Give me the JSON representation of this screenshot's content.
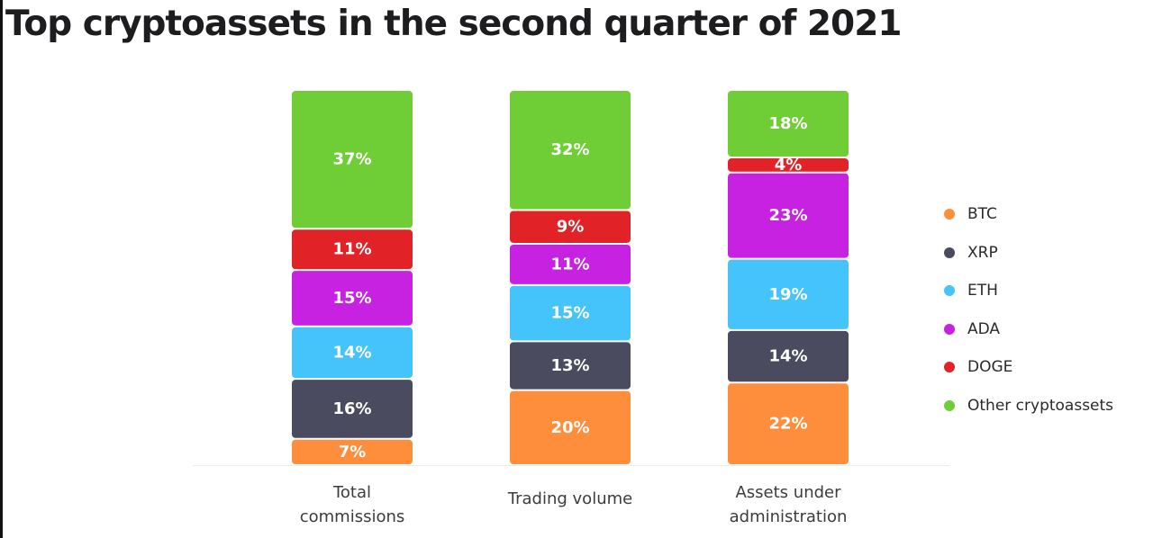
{
  "title": "Top cryptoassets in the second quarter of 2021",
  "colors": {
    "BTC": "#fe8e3b",
    "XRP": "#4a4b5e",
    "ETH": "#45c4fb",
    "ADA": "#c722e1",
    "DOGE": "#e12226",
    "Other cryptoassets": "#6fce35"
  },
  "chart_data": {
    "type": "bar",
    "stacked": true,
    "normalized": true,
    "title": "Top cryptoassets in the second quarter of 2021",
    "xlabel": "",
    "ylabel": "",
    "ylim": [
      0,
      100
    ],
    "grid": false,
    "legend": "right",
    "categories": [
      "Total commissions",
      "Trading volume",
      "Assets under administration"
    ],
    "category_lines": [
      [
        "Total",
        "commissions"
      ],
      [
        "Trading volume"
      ],
      [
        "Assets under",
        "administration"
      ]
    ],
    "series": [
      {
        "name": "BTC",
        "values": [
          7,
          20,
          22
        ],
        "labels": [
          "7%",
          "20%",
          "22%"
        ]
      },
      {
        "name": "XRP",
        "values": [
          16,
          13,
          14
        ],
        "labels": [
          "16%",
          "13%",
          "14%"
        ]
      },
      {
        "name": "ETH",
        "values": [
          14,
          15,
          19
        ],
        "labels": [
          "14%",
          "15%",
          "19%"
        ]
      },
      {
        "name": "ADA",
        "values": [
          15,
          11,
          23
        ],
        "labels": [
          "15%",
          "11%",
          "23%"
        ]
      },
      {
        "name": "DOGE",
        "values": [
          11,
          9,
          4
        ],
        "labels": [
          "11%",
          "9%",
          "4%"
        ]
      },
      {
        "name": "Other cryptoassets",
        "values": [
          37,
          32,
          18
        ],
        "labels": [
          "37%",
          "32%",
          "18%"
        ]
      }
    ]
  }
}
